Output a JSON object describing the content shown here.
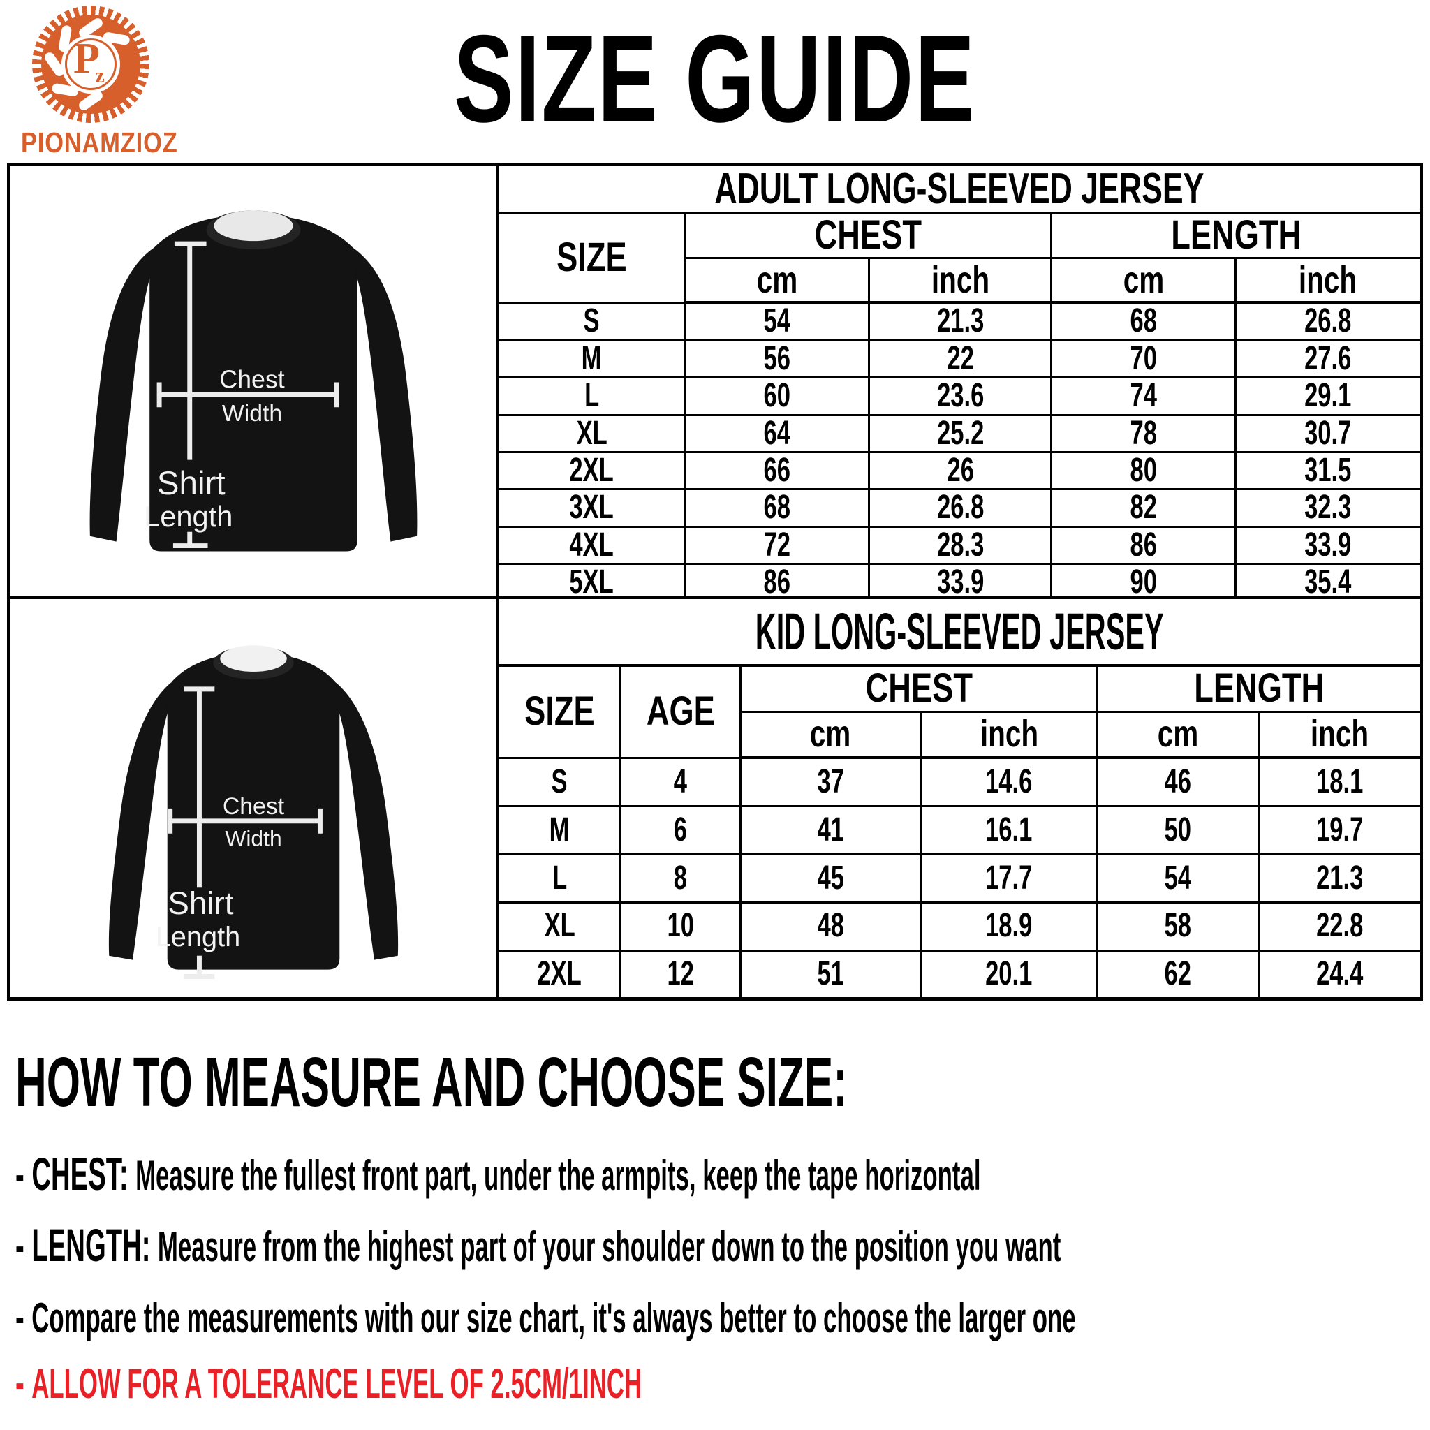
{
  "brand": {
    "name": "PIONAMZIOZ",
    "monogram_p": "P",
    "monogram_z": "z"
  },
  "title": "SIZE GUIDE",
  "measure_labels": {
    "chest_top": "Chest",
    "chest_bottom": "Width",
    "length_top": "Shirt",
    "length_bottom": "Length"
  },
  "adult_table": {
    "title": "ADULT LONG-SLEEVED JERSEY",
    "headers": {
      "size": "SIZE",
      "chest": "CHEST",
      "length": "LENGTH",
      "cm": "cm",
      "inch": "inch"
    },
    "rows": [
      [
        "S",
        "54",
        "21.3",
        "68",
        "26.8"
      ],
      [
        "M",
        "56",
        "22",
        "70",
        "27.6"
      ],
      [
        "L",
        "60",
        "23.6",
        "74",
        "29.1"
      ],
      [
        "XL",
        "64",
        "25.2",
        "78",
        "30.7"
      ],
      [
        "2XL",
        "66",
        "26",
        "80",
        "31.5"
      ],
      [
        "3XL",
        "68",
        "26.8",
        "82",
        "32.3"
      ],
      [
        "4XL",
        "72",
        "28.3",
        "86",
        "33.9"
      ],
      [
        "5XL",
        "86",
        "33.9",
        "90",
        "35.4"
      ]
    ]
  },
  "kid_table": {
    "title": "KID LONG-SLEEVED JERSEY",
    "headers": {
      "size": "SIZE",
      "age": "AGE",
      "chest": "CHEST",
      "length": "LENGTH",
      "cm": "cm",
      "inch": "inch"
    },
    "rows": [
      [
        "S",
        "4",
        "37",
        "14.6",
        "46",
        "18.1"
      ],
      [
        "M",
        "6",
        "41",
        "16.1",
        "50",
        "19.7"
      ],
      [
        "L",
        "8",
        "45",
        "17.7",
        "54",
        "21.3"
      ],
      [
        "XL",
        "10",
        "48",
        "18.9",
        "58",
        "22.8"
      ],
      [
        "2XL",
        "12",
        "51",
        "20.1",
        "62",
        "24.4"
      ]
    ]
  },
  "instructions": {
    "heading": "HOW TO MEASURE AND CHOOSE SIZE:",
    "items": [
      {
        "label": "- CHEST:",
        "text": "Measure the fullest front part, under the armpits, keep the tape horizontal"
      },
      {
        "label": "- LENGTH:",
        "text": "Measure from the highest part of your shoulder down to the position you want"
      },
      {
        "label": "-",
        "text": "Compare the measurements with our size chart, it's always better to choose the larger one"
      },
      {
        "label": "-",
        "text": "ALLOW FOR A TOLERANCE LEVEL OF 2.5CM/1INCH"
      }
    ]
  },
  "colors": {
    "accent_orange": "#d65f2b",
    "alert_red": "#e92127",
    "shirt_black": "#131313"
  }
}
